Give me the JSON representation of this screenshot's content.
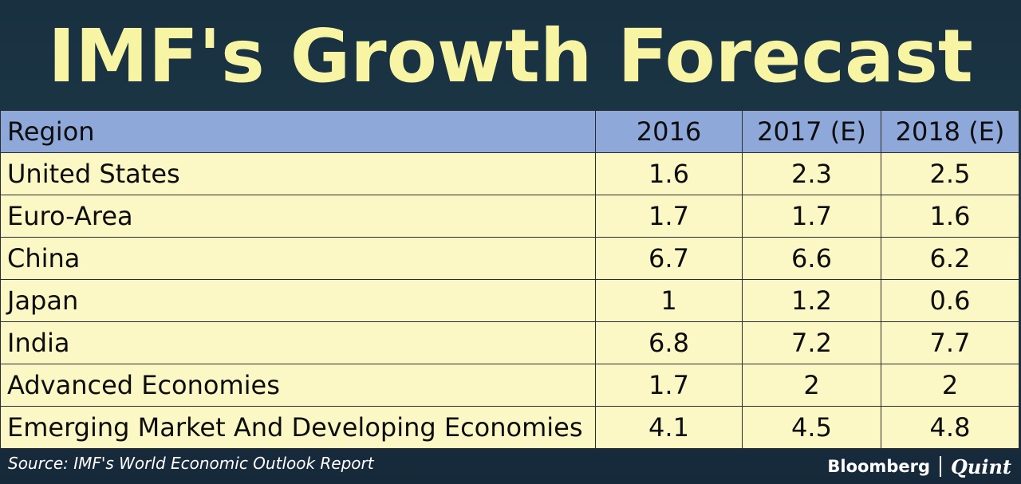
{
  "title": "IMF's Growth Forecast",
  "source": "Source: IMF's World Economic Outlook Report",
  "logo": {
    "brand_a": "Bloomberg",
    "divider": "|",
    "brand_b": "Quint"
  },
  "colors": {
    "background": "#1f3443",
    "title": "#f7f5a4",
    "header_fill": "#8fa8da",
    "row_fill": "#fbf8c5"
  },
  "chart_data": {
    "type": "table",
    "title": "IMF's Growth Forecast",
    "columns": [
      "Region",
      "2016",
      "2017 (E)",
      "2018 (E)"
    ],
    "rows": [
      [
        "United States",
        "1.6",
        "2.3",
        "2.5"
      ],
      [
        "Euro-Area",
        "1.7",
        "1.7",
        "1.6"
      ],
      [
        "China",
        "6.7",
        "6.6",
        "6.2"
      ],
      [
        "Japan",
        "1",
        "1.2",
        "0.6"
      ],
      [
        "India",
        "6.8",
        "7.2",
        "7.7"
      ],
      [
        "Advanced Economies",
        "1.7",
        "2",
        "2"
      ],
      [
        "Emerging Market And Developing Economies",
        "4.1",
        "4.5",
        "4.8"
      ]
    ]
  }
}
